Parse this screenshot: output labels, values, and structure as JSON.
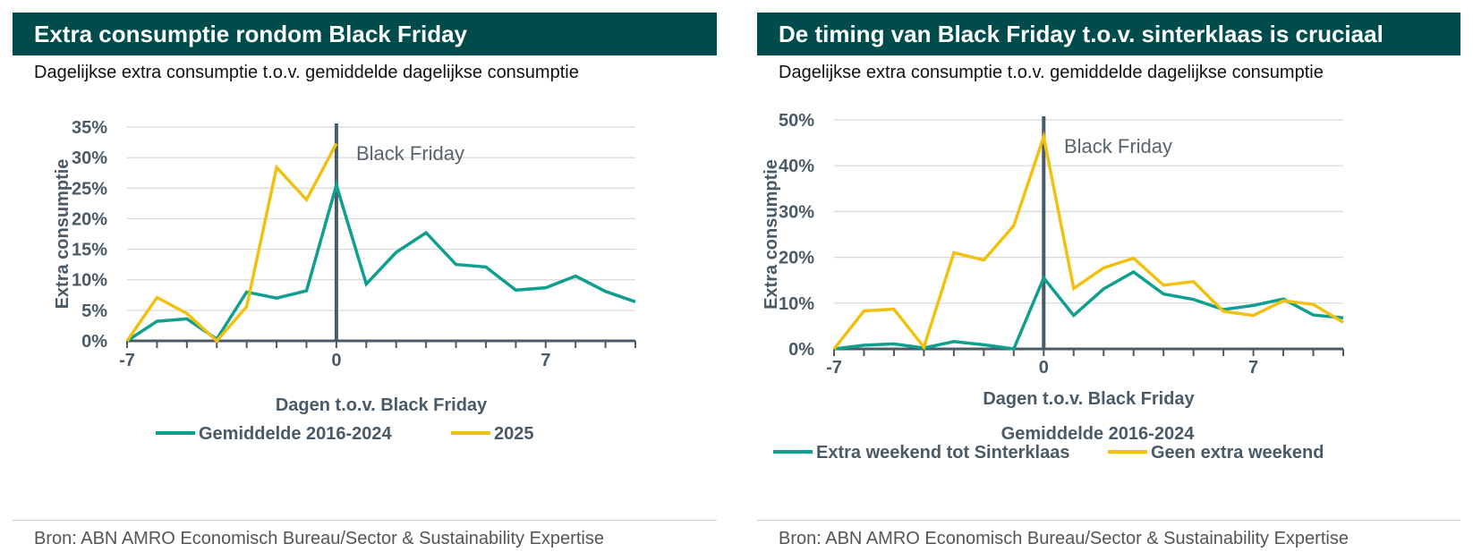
{
  "left": {
    "title": "Extra consumptie rondom Black Friday",
    "subtitle": "Dagelijkse extra consumptie t.o.v. gemiddelde dagelijkse consumptie",
    "source": "Bron: ABN AMRO Economisch Bureau/Sector & Sustainability Expertise"
  },
  "right": {
    "title": "De timing van Black Friday t.o.v. sinterklaas is cruciaal",
    "subtitle": "Dagelijkse extra consumptie t.o.v. gemiddelde dagelijkse consumptie",
    "source": "Bron: ABN AMRO Economisch Bureau/Sector & Sustainability Expertise"
  },
  "colors": {
    "teal": "#0f9f8f",
    "yellow": "#f2c10f",
    "axis": "#4a5a66",
    "grid": "#d8d8d8",
    "header": "#004c4c"
  },
  "chart_data": [
    {
      "type": "line",
      "xlabel": "Dagen t.o.v. Black Friday",
      "ylabel": "Extra consumptie",
      "xlim": [
        -7,
        10
      ],
      "ylim": [
        0,
        35
      ],
      "xticks": [
        -7,
        0,
        7
      ],
      "yticks": [
        0,
        5,
        10,
        15,
        20,
        25,
        30,
        35
      ],
      "ytick_labels": [
        "0%",
        "5%",
        "10%",
        "15%",
        "20%",
        "25%",
        "30%",
        "35%"
      ],
      "annotation": "Black Friday",
      "vline_x": 0,
      "grid": true,
      "legend_position": "bottom",
      "series": [
        {
          "name": "Gemiddelde 2016-2024",
          "color": "#0f9f8f",
          "x": [
            -7,
            -6,
            -5,
            -4,
            -3,
            -2,
            -1,
            0,
            1,
            2,
            3,
            4,
            5,
            6,
            7,
            8,
            9,
            10
          ],
          "y": [
            0,
            3.2,
            3.6,
            0.3,
            8,
            7,
            8.2,
            25.5,
            9.3,
            14.5,
            17.7,
            12.5,
            12.1,
            8.3,
            8.7,
            10.6,
            8.1,
            6.4
          ]
        },
        {
          "name": "2025",
          "color": "#f2c10f",
          "x": [
            -7,
            -6,
            -5,
            -4,
            -3,
            -2,
            -1,
            0
          ],
          "y": [
            0,
            7.1,
            4.5,
            0,
            5.6,
            28.4,
            23.1,
            32.3
          ]
        }
      ]
    },
    {
      "type": "line",
      "xlabel": "Dagen t.o.v. Black Friday",
      "ylabel": "Extra consumptie",
      "legend_title": "Gemiddelde 2016-2024",
      "xlim": [
        -7,
        10
      ],
      "ylim": [
        0,
        50
      ],
      "xticks": [
        -7,
        0,
        7
      ],
      "yticks": [
        0,
        10,
        20,
        30,
        40,
        50
      ],
      "ytick_labels": [
        "0%",
        "10%",
        "20%",
        "30%",
        "40%",
        "50%"
      ],
      "annotation": "Black Friday",
      "vline_x": 0,
      "grid": true,
      "legend_position": "bottom",
      "series": [
        {
          "name": "Extra weekend tot Sinterklaas",
          "color": "#0f9f8f",
          "x": [
            -7,
            -6,
            -5,
            -4,
            -3,
            -2,
            -1,
            0,
            1,
            2,
            3,
            4,
            5,
            6,
            7,
            8,
            9,
            10
          ],
          "y": [
            0,
            0.8,
            1.1,
            0.2,
            1.6,
            0.9,
            -0.5,
            15.5,
            7.3,
            13.1,
            16.8,
            12,
            10.8,
            8.6,
            9.5,
            10.9,
            7.4,
            6.8
          ]
        },
        {
          "name": "Geen extra weekend",
          "color": "#f2c10f",
          "x": [
            -7,
            -6,
            -5,
            -4,
            -3,
            -2,
            -1,
            0,
            1,
            2,
            3,
            4,
            5,
            6,
            7,
            8,
            9,
            10
          ],
          "y": [
            0,
            8.3,
            8.7,
            0.4,
            21,
            19.4,
            26.9,
            46.3,
            13.2,
            17.7,
            19.8,
            13.9,
            14.7,
            8.2,
            7.3,
            10.5,
            9.7,
            5.8
          ]
        }
      ]
    }
  ]
}
